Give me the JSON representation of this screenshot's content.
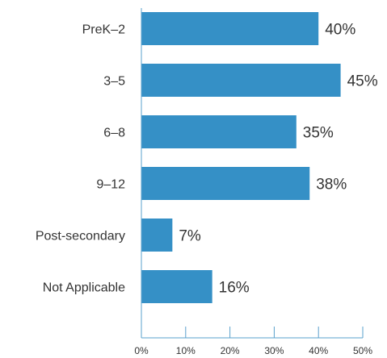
{
  "chart_data": {
    "type": "bar",
    "orientation": "horizontal",
    "categories": [
      "PreK–2",
      "3–5",
      "6–8",
      "9–12",
      "Post-secondary",
      "Not Applicable"
    ],
    "values": [
      40,
      45,
      35,
      38,
      7,
      16
    ],
    "data_labels": [
      "40%",
      "45%",
      "35%",
      "38%",
      "7%",
      "16%"
    ],
    "xticks": [
      0,
      10,
      20,
      30,
      40,
      50
    ],
    "xtick_labels": [
      "0%",
      "10%",
      "20%",
      "30%",
      "40%",
      "50%"
    ],
    "xlim": [
      0,
      50
    ],
    "bar_color": "#3590c6",
    "axis_color": "#5aa0cc",
    "grid": false
  }
}
